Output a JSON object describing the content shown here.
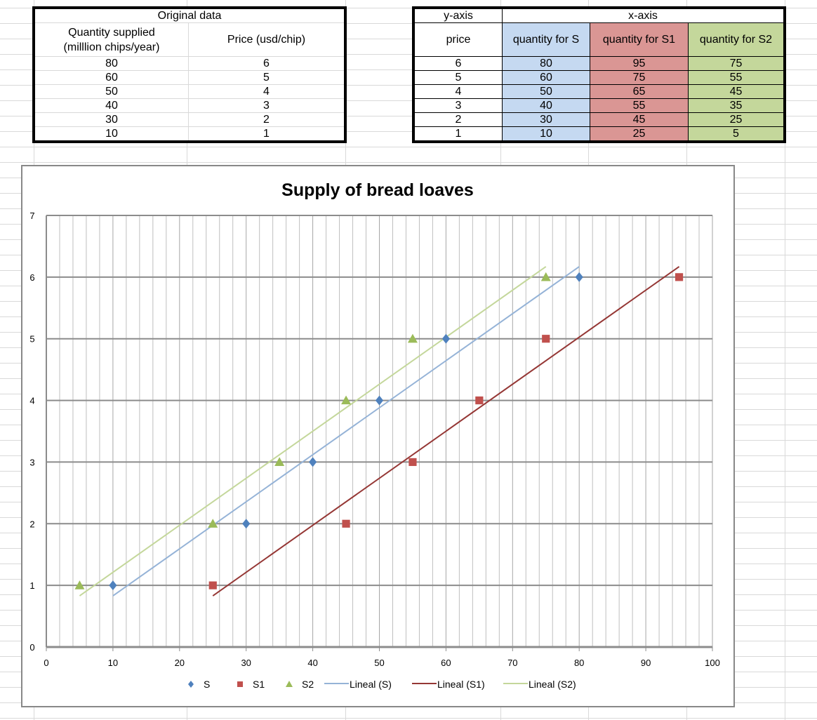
{
  "original_table": {
    "title": "Original data",
    "headers": [
      "Quantity supplied",
      "(milllion chips/year)",
      "Price (usd/chip)"
    ],
    "rows": [
      [
        "80",
        "6"
      ],
      [
        "60",
        "5"
      ],
      [
        "50",
        "4"
      ],
      [
        "40",
        "3"
      ],
      [
        "30",
        "2"
      ],
      [
        "10",
        "1"
      ]
    ]
  },
  "axis_table": {
    "y_header": "y-axis",
    "x_header": "x-axis",
    "columns": [
      "price",
      "quantity for S",
      "quantity for S1",
      "quantity for S2"
    ],
    "rows": [
      [
        "6",
        "80",
        "95",
        "75"
      ],
      [
        "5",
        "60",
        "75",
        "55"
      ],
      [
        "4",
        "50",
        "65",
        "45"
      ],
      [
        "3",
        "40",
        "55",
        "35"
      ],
      [
        "2",
        "30",
        "45",
        "25"
      ],
      [
        "1",
        "10",
        "25",
        "5"
      ]
    ]
  },
  "chart_data": {
    "type": "scatter",
    "title": "Supply of bread loaves",
    "xlim": [
      0,
      100
    ],
    "ylim": [
      0,
      7
    ],
    "xticks": [
      0,
      10,
      20,
      30,
      40,
      50,
      60,
      70,
      80,
      90,
      100
    ],
    "yticks": [
      0,
      1,
      2,
      3,
      4,
      5,
      6,
      7
    ],
    "grid": true,
    "legend": "bottom",
    "series": [
      {
        "name": "S",
        "marker": "diamond",
        "color": "#4f81bd",
        "x": [
          80,
          60,
          50,
          40,
          30,
          10
        ],
        "y": [
          6,
          5,
          4,
          3,
          2,
          1
        ]
      },
      {
        "name": "S1",
        "marker": "square",
        "color": "#c0504d",
        "x": [
          95,
          75,
          65,
          55,
          45,
          25
        ],
        "y": [
          6,
          5,
          4,
          3,
          2,
          1
        ]
      },
      {
        "name": "S2",
        "marker": "triangle",
        "color": "#9bbb59",
        "x": [
          75,
          55,
          45,
          35,
          25,
          5
        ],
        "y": [
          6,
          5,
          4,
          3,
          2,
          1
        ]
      }
    ],
    "trendlines": [
      {
        "name": "Lineal (S)",
        "of": "S",
        "type": "linear",
        "color": "#95b3d7"
      },
      {
        "name": "Lineal (S1)",
        "of": "S1",
        "type": "linear",
        "color": "#953735"
      },
      {
        "name": "Lineal (S2)",
        "of": "S2",
        "type": "linear",
        "color": "#c4d79b"
      }
    ]
  }
}
